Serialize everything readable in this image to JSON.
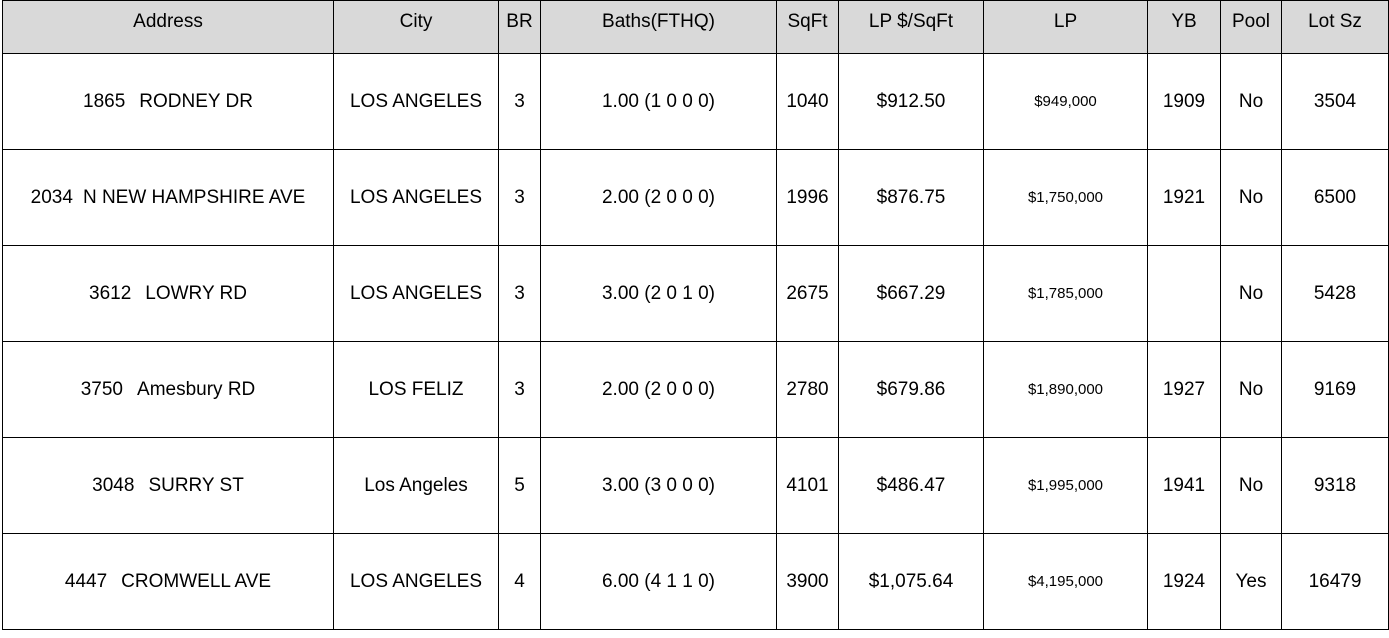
{
  "headers": {
    "address": "Address",
    "city": "City",
    "br": "BR",
    "baths": "Baths(FTHQ)",
    "sqft": "SqFt",
    "lp_sqft": "LP $/SqFt",
    "lp": "LP",
    "yb": "YB",
    "pool": "Pool",
    "lot": "Lot Sz"
  },
  "rows": [
    {
      "num": "1865",
      "street": "RODNEY DR",
      "city": "LOS ANGELES",
      "br": "3",
      "baths": "1.00 (1 0 0 0)",
      "sqft": "1040",
      "lp_sqft": "$912.50",
      "lp": "$949,000",
      "yb": "1909",
      "pool": "No",
      "lot": "3504"
    },
    {
      "num": "2034",
      "street": "N NEW HAMPSHIRE AVE",
      "city": "LOS ANGELES",
      "br": "3",
      "baths": "2.00 (2 0 0 0)",
      "sqft": "1996",
      "lp_sqft": "$876.75",
      "lp": "$1,750,000",
      "yb": "1921",
      "pool": "No",
      "lot": "6500"
    },
    {
      "num": "3612",
      "street": "LOWRY RD",
      "city": "LOS ANGELES",
      "br": "3",
      "baths": "3.00 (2 0 1 0)",
      "sqft": "2675",
      "lp_sqft": "$667.29",
      "lp": "$1,785,000",
      "yb": "",
      "pool": "No",
      "lot": "5428"
    },
    {
      "num": "3750",
      "street": "Amesbury RD",
      "city": "LOS FELIZ",
      "br": "3",
      "baths": "2.00 (2 0 0 0)",
      "sqft": "2780",
      "lp_sqft": "$679.86",
      "lp": "$1,890,000",
      "yb": "1927",
      "pool": "No",
      "lot": "9169"
    },
    {
      "num": "3048",
      "street": "SURRY ST",
      "city": "Los Angeles",
      "br": "5",
      "baths": "3.00 (3 0 0 0)",
      "sqft": "4101",
      "lp_sqft": "$486.47",
      "lp": "$1,995,000",
      "yb": "1941",
      "pool": "No",
      "lot": "9318"
    },
    {
      "num": "4447",
      "street": "CROMWELL AVE",
      "city": "LOS ANGELES",
      "br": "4",
      "baths": "6.00 (4 1 1 0)",
      "sqft": "3900",
      "lp_sqft": "$1,075.64",
      "lp": "$4,195,000",
      "yb": "1924",
      "pool": "Yes",
      "lot": "16479"
    }
  ]
}
